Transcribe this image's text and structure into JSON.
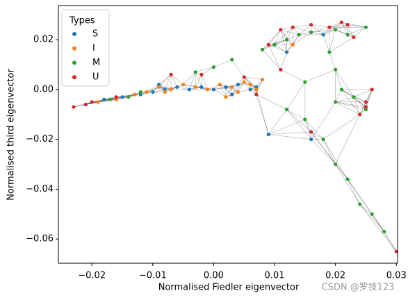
{
  "chart_data": {
    "type": "scatter",
    "xlabel": "Normalised Fiedler eigenvector",
    "ylabel": "Normalised third eigenvector",
    "legend_title": "Types",
    "legend": "upper left",
    "watermark": "CSDN @罗技123",
    "xlim": [
      -0.0255,
      0.0302
    ],
    "ylim": [
      -0.0697,
      0.0337
    ],
    "xticks": [
      {
        "value": -0.02,
        "label": "−0.02"
      },
      {
        "value": -0.01,
        "label": "−0.01"
      },
      {
        "value": 0,
        "label": "0.00"
      },
      0.01,
      0.02,
      0.03
    ],
    "yticks": [
      {
        "value": -0.06,
        "label": "−0.06"
      },
      {
        "value": -0.04,
        "label": "−0.04"
      },
      {
        "value": -0.02,
        "label": "−0.02"
      },
      {
        "value": 0,
        "label": "0.00"
      },
      0.02
    ],
    "series": [
      {
        "name": "S",
        "color": "#1f77b4",
        "x": [
          -0.021,
          -0.018,
          -0.015,
          -0.012,
          -0.01,
          -0.008,
          -0.006,
          -0.004,
          -0.002,
          0.0,
          0.002,
          0.004,
          0.006,
          0.007,
          -0.009,
          0.003,
          0.012,
          0.016,
          0.018,
          0.009
        ],
        "y": [
          -0.006,
          -0.004,
          -0.003,
          -0.002,
          -0.001,
          0.0,
          0.001,
          0.0,
          0.001,
          0.0,
          0.001,
          0.002,
          0.0,
          0.001,
          0.002,
          -0.002,
          0.015,
          -0.02,
          0.022,
          -0.018
        ]
      },
      {
        "name": "I",
        "color": "#ff7f0e",
        "x": [
          -0.019,
          -0.016,
          -0.013,
          -0.011,
          -0.009,
          -0.007,
          -0.005,
          -0.003,
          -0.001,
          0.001,
          0.003,
          0.005,
          0.006,
          0.007,
          0.004,
          0.008,
          -0.008,
          0.013,
          0.002
        ],
        "y": [
          -0.005,
          -0.004,
          -0.002,
          -0.001,
          0.001,
          0.0,
          0.002,
          0.001,
          0.0,
          0.002,
          0.001,
          0.003,
          0.002,
          0.0,
          -0.001,
          0.004,
          -0.001,
          0.018,
          -0.003
        ]
      },
      {
        "name": "M",
        "color": "#2ca02c",
        "x": [
          -0.017,
          -0.014,
          -0.012,
          -0.003,
          0.0,
          0.003,
          0.008,
          0.01,
          0.012,
          0.014,
          0.016,
          0.02,
          0.022,
          0.025,
          0.019,
          0.02,
          0.02,
          0.021,
          0.023,
          0.025,
          0.015,
          0.018,
          0.02,
          0.022,
          0.024,
          0.026,
          0.028,
          0.012,
          0.015
        ],
        "y": [
          -0.004,
          -0.003,
          -0.001,
          0.007,
          0.009,
          0.012,
          0.016,
          0.018,
          0.02,
          0.022,
          0.023,
          0.024,
          0.022,
          0.025,
          0.015,
          0.008,
          -0.005,
          0.0,
          -0.003,
          -0.008,
          -0.012,
          -0.02,
          -0.03,
          -0.036,
          -0.046,
          -0.05,
          -0.057,
          -0.008,
          0.003
        ]
      },
      {
        "name": "U",
        "color": "#d62728",
        "x": [
          -0.023,
          -0.021,
          -0.02,
          -0.016,
          -0.007,
          -0.002,
          0.005,
          0.009,
          0.011,
          0.013,
          0.016,
          0.019,
          0.021,
          0.022,
          0.023,
          0.025,
          0.026,
          0.025,
          0.024,
          0.016,
          0.03,
          0.011,
          0.007
        ],
        "y": [
          -0.007,
          -0.006,
          -0.005,
          -0.003,
          0.006,
          0.006,
          0.005,
          0.018,
          0.024,
          0.025,
          0.026,
          0.025,
          0.027,
          0.026,
          0.021,
          -0.007,
          0.0,
          -0.005,
          -0.01,
          -0.017,
          -0.065,
          0.008,
          -0.002
        ]
      }
    ]
  }
}
